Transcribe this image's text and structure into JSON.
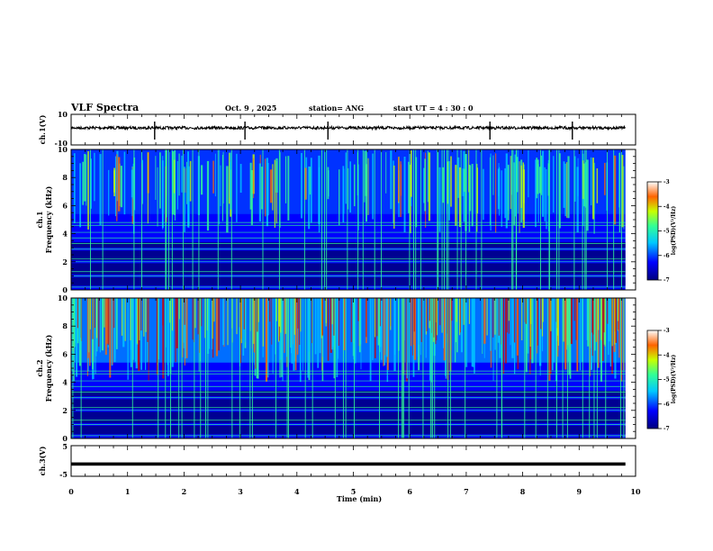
{
  "header": {
    "title": "VLF Spectra",
    "date": "Oct. 9 , 2025",
    "station": "station= ANG",
    "start_ut": "start  UT  =   4 : 30 : 0"
  },
  "chart_data": {
    "type": "heatmap",
    "xlabel": "Time  (min)",
    "xlim": [
      0,
      10
    ],
    "xticks": [
      "0",
      "1",
      "2",
      "3",
      "4",
      "5",
      "6",
      "7",
      "8",
      "9",
      "10"
    ],
    "panels": [
      {
        "id": "ch1_waveform",
        "type": "line",
        "ylabel": "ch.1(V)",
        "ylim": [
          -10,
          10
        ],
        "yticks": [
          "10",
          "-10"
        ],
        "baseline": 0,
        "spike_times_min": [
          1.48,
          3.08,
          4.55,
          7.42,
          8.88
        ]
      },
      {
        "id": "ch1_spectrogram",
        "type": "heatmap",
        "ylabel": "ch.1\nFrequency  (kHz)",
        "ylim": [
          0,
          10
        ],
        "yticks": [
          "0",
          "2",
          "4",
          "6",
          "8",
          "10"
        ],
        "data_extent_min": [
          0,
          9.82
        ],
        "colorbar": {
          "label": "log(PSD)(V²/Hz)",
          "range": [
            -7,
            -3
          ],
          "ticks": [
            "-3",
            "-4",
            "-5",
            "-6",
            "-7"
          ]
        }
      },
      {
        "id": "ch2_spectrogram",
        "type": "heatmap",
        "ylabel": "ch.2\nFrequency  (kHz)",
        "ylim": [
          0,
          10
        ],
        "yticks": [
          "0",
          "2",
          "4",
          "6",
          "8",
          "10"
        ],
        "data_extent_min": [
          0,
          9.82
        ],
        "colorbar": {
          "label": "log(PSD)(V²/Hz)",
          "range": [
            -7,
            -3
          ],
          "ticks": [
            "-3",
            "-4",
            "-5",
            "-6",
            "-7"
          ]
        }
      },
      {
        "id": "ch3_waveform",
        "type": "line",
        "ylabel": "ch.3(V)",
        "ylim": [
          -5,
          5
        ],
        "yticks": [
          "5",
          "-5"
        ],
        "level": -1
      }
    ]
  },
  "colors": {
    "background": "#ffffff",
    "axis": "#000000",
    "colormap": [
      "#00007f",
      "#0000ff",
      "#00c8ff",
      "#32ff96",
      "#c8ff00",
      "#ff6400",
      "#d00000"
    ]
  }
}
